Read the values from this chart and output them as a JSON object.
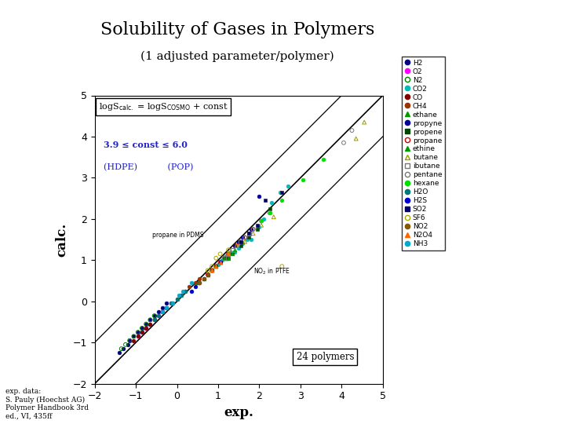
{
  "title": "Solubility of Gases in Polymers",
  "subtitle": "(1 adjusted parameter/polymer)",
  "xlabel": "exp.",
  "ylabel": "calc.",
  "xlim": [
    -2,
    5
  ],
  "ylim": [
    -2,
    5
  ],
  "xticks": [
    -2,
    -1,
    0,
    1,
    2,
    3,
    4,
    5
  ],
  "yticks": [
    -2,
    -1,
    0,
    1,
    2,
    3,
    4,
    5
  ],
  "footnote": "exp. data:\nS. Pauly (Hoechst AG)\nPolymer Handbook 3rd\ned., VI, 435ff",
  "legend_entries": [
    {
      "label": "H2",
      "color": "#000080",
      "marker": "o",
      "filled": true
    },
    {
      "label": "O2",
      "color": "#ff00ff",
      "marker": "o",
      "filled": true
    },
    {
      "label": "N2",
      "color": "#008000",
      "marker": "o",
      "filled": false
    },
    {
      "label": "CO2",
      "color": "#00bbbb",
      "marker": "o",
      "filled": true
    },
    {
      "label": "CO",
      "color": "#800000",
      "marker": "o",
      "filled": true
    },
    {
      "label": "CH4",
      "color": "#993300",
      "marker": "o",
      "filled": true
    },
    {
      "label": "ethane",
      "color": "#009900",
      "marker": "^",
      "filled": true
    },
    {
      "label": "propyne",
      "color": "#000099",
      "marker": "o",
      "filled": true
    },
    {
      "label": "propene",
      "color": "#004400",
      "marker": "s",
      "filled": true
    },
    {
      "label": "propane",
      "color": "#cc0000",
      "marker": "o",
      "filled": false
    },
    {
      "label": "ethine",
      "color": "#009900",
      "marker": "^",
      "filled": true
    },
    {
      "label": "butane",
      "color": "#999900",
      "marker": "^",
      "filled": false
    },
    {
      "label": "ibutane",
      "color": "#777777",
      "marker": "s",
      "filled": false
    },
    {
      "label": "pentane",
      "color": "#777777",
      "marker": "o",
      "filled": false
    },
    {
      "label": "hexane",
      "color": "#00dd00",
      "marker": "o",
      "filled": true
    },
    {
      "label": "H2O",
      "color": "#007777",
      "marker": "o",
      "filled": true
    },
    {
      "label": "H2S",
      "color": "#0000cc",
      "marker": "o",
      "filled": true
    },
    {
      "label": "SO2",
      "color": "#000066",
      "marker": "s",
      "filled": true
    },
    {
      "label": "SF6",
      "color": "#aaaa00",
      "marker": "o",
      "filled": false
    },
    {
      "label": "NO2",
      "color": "#885500",
      "marker": "o",
      "filled": true
    },
    {
      "label": "N2O4",
      "color": "#ff6600",
      "marker": "^",
      "filled": true
    },
    {
      "label": "NH3",
      "color": "#00aacc",
      "marker": "o",
      "filled": true
    }
  ],
  "scatter_data": [
    {
      "gas": "H2",
      "x": [
        -1.4,
        -1.3,
        -1.2,
        -1.15,
        -1.05,
        -0.95,
        -0.85,
        -0.75,
        -0.65,
        -0.55,
        -0.45,
        -0.35,
        -0.25
      ],
      "y": [
        -1.25,
        -1.15,
        -1.05,
        -0.95,
        -0.85,
        -0.75,
        -0.65,
        -0.55,
        -0.45,
        -0.35,
        -0.25,
        -0.15,
        -0.05
      ]
    },
    {
      "gas": "O2",
      "x": [
        -0.95,
        -0.85,
        -0.75,
        -0.65,
        -0.55,
        -0.45,
        -0.35,
        -0.25,
        -0.15
      ],
      "y": [
        -0.85,
        -0.75,
        -0.65,
        -0.55,
        -0.45,
        -0.35,
        -0.25,
        -0.15,
        -0.05
      ]
    },
    {
      "gas": "N2",
      "x": [
        -1.35,
        -1.25,
        -1.15,
        -1.05,
        -0.95,
        -0.85,
        -0.75,
        -0.65,
        -0.55
      ],
      "y": [
        -1.15,
        -1.05,
        -0.95,
        -0.85,
        -0.75,
        -0.65,
        -0.55,
        -0.45,
        -0.35
      ]
    },
    {
      "gas": "CO2",
      "x": [
        1.0,
        1.1,
        1.2,
        1.3,
        1.4,
        1.5,
        1.6,
        1.7,
        1.8,
        2.0,
        2.1,
        2.3,
        2.5,
        2.7
      ],
      "y": [
        0.9,
        1.0,
        1.1,
        1.2,
        1.2,
        1.3,
        1.4,
        1.5,
        1.5,
        1.8,
        2.0,
        2.4,
        2.65,
        2.8
      ]
    },
    {
      "gas": "CO",
      "x": [
        -1.05,
        -0.95,
        -0.85,
        -0.75,
        -0.65,
        -0.55
      ],
      "y": [
        -0.95,
        -0.85,
        -0.75,
        -0.65,
        -0.55,
        -0.45
      ]
    },
    {
      "gas": "CH4",
      "x": [
        -0.35,
        -0.25,
        -0.1,
        0.0,
        0.1,
        0.2,
        0.3,
        0.45,
        0.55
      ],
      "y": [
        -0.25,
        -0.15,
        -0.05,
        0.05,
        0.15,
        0.25,
        0.35,
        0.45,
        0.55
      ]
    },
    {
      "gas": "ethane",
      "x": [
        0.5,
        0.65,
        0.75,
        0.85,
        0.95,
        1.05,
        1.2,
        1.4,
        1.6
      ],
      "y": [
        0.45,
        0.55,
        0.65,
        0.75,
        0.85,
        0.95,
        1.05,
        1.25,
        1.45
      ]
    },
    {
      "gas": "propyne",
      "x": [
        1.4,
        1.5,
        1.6,
        1.8,
        2.0
      ],
      "y": [
        1.35,
        1.45,
        1.55,
        1.75,
        2.55
      ]
    },
    {
      "gas": "propene",
      "x": [
        0.85,
        0.95,
        1.05,
        1.15,
        1.25,
        1.35,
        1.55,
        1.75,
        1.95,
        2.25
      ],
      "y": [
        0.75,
        0.85,
        0.95,
        1.05,
        1.05,
        1.15,
        1.35,
        1.55,
        1.75,
        2.25
      ]
    },
    {
      "gas": "propane",
      "x": [
        0.75,
        0.85,
        0.95,
        1.05,
        1.15,
        1.25,
        1.45,
        1.65,
        1.85
      ],
      "y": [
        0.65,
        0.75,
        0.85,
        0.95,
        1.05,
        1.15,
        1.35,
        1.55,
        1.75
      ]
    },
    {
      "gas": "ethine",
      "x": [
        0.85,
        0.95,
        1.05,
        1.15,
        1.25,
        1.35
      ],
      "y": [
        0.75,
        0.85,
        0.95,
        1.05,
        1.05,
        1.15
      ]
    },
    {
      "gas": "butane",
      "x": [
        1.25,
        1.45,
        1.65,
        1.85,
        2.05,
        2.35,
        4.35,
        4.55
      ],
      "y": [
        1.15,
        1.35,
        1.45,
        1.65,
        1.85,
        2.05,
        3.95,
        4.35
      ]
    },
    {
      "gas": "ibutane",
      "x": [
        1.15,
        1.25,
        1.35,
        1.55,
        1.75
      ],
      "y": [
        1.05,
        1.15,
        1.25,
        1.45,
        1.65
      ]
    },
    {
      "gas": "pentane",
      "x": [
        1.65,
        1.85,
        2.05,
        2.25,
        4.05,
        4.25
      ],
      "y": [
        1.55,
        1.75,
        1.95,
        2.15,
        3.85,
        4.15
      ]
    },
    {
      "gas": "hexane",
      "x": [
        2.05,
        2.25,
        2.55,
        3.05,
        3.55
      ],
      "y": [
        1.95,
        2.15,
        2.45,
        2.95,
        3.45
      ]
    },
    {
      "gas": "H2O",
      "x": [
        -0.55,
        -0.45,
        -0.35,
        -0.25,
        -0.15,
        0.0,
        0.1,
        0.2
      ],
      "y": [
        -0.45,
        -0.35,
        -0.25,
        -0.15,
        -0.05,
        0.05,
        0.15,
        0.25
      ]
    },
    {
      "gas": "H2S",
      "x": [
        0.35,
        0.45,
        0.55,
        0.65,
        0.75,
        0.85,
        1.05
      ],
      "y": [
        0.25,
        0.35,
        0.45,
        0.55,
        0.65,
        0.75,
        0.95
      ]
    },
    {
      "gas": "SO2",
      "x": [
        1.55,
        1.75,
        1.95,
        2.15,
        2.55
      ],
      "y": [
        1.45,
        1.65,
        1.85,
        2.45,
        2.65
      ]
    },
    {
      "gas": "SF6",
      "x": [
        0.75,
        0.85,
        0.95,
        1.05,
        1.25,
        2.55
      ],
      "y": [
        0.75,
        0.85,
        1.05,
        1.15,
        1.25,
        0.85
      ]
    },
    {
      "gas": "NO2",
      "x": [
        0.55,
        0.65,
        0.75,
        0.85
      ],
      "y": [
        0.45,
        0.55,
        0.65,
        0.75
      ]
    },
    {
      "gas": "N2O4",
      "x": [
        0.85,
        0.95,
        1.05,
        1.25
      ],
      "y": [
        0.75,
        0.85,
        0.95,
        1.15
      ]
    },
    {
      "gas": "NH3",
      "x": [
        -0.35,
        -0.25,
        -0.1,
        0.05,
        0.15,
        0.35
      ],
      "y": [
        -0.25,
        -0.15,
        -0.05,
        0.15,
        0.25,
        0.45
      ]
    }
  ]
}
